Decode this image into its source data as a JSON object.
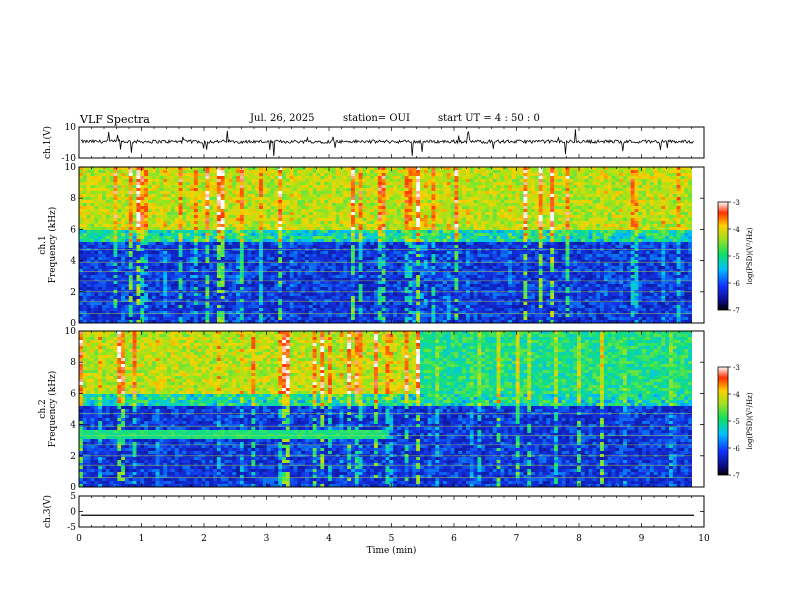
{
  "header": {
    "title": "VLF Spectra",
    "date": "Jul. 26, 2025",
    "station": "station= OUI",
    "start_time": "start UT =  4 : 50 : 0"
  },
  "colorbar": {
    "label": "log(PSD)(V²/Hz)",
    "ticks": [
      "-3",
      "-4",
      "-5",
      "-6",
      "-7"
    ]
  },
  "chart_data": [
    {
      "type": "line",
      "id": "ch1-waveform",
      "ylabel": "ch.1(V)",
      "ylim": [
        -10,
        10
      ],
      "yticks": [
        "10",
        "-10"
      ],
      "baseline": 0.6,
      "description_level": "dense noisy waveform around ~0 V with sparse negative spikes"
    },
    {
      "type": "heatmap",
      "id": "ch1-spectrogram",
      "ylabel": "ch.1\nFrequency (kHz)",
      "ylim": [
        0,
        10
      ],
      "yticks": [
        "0",
        "2",
        "4",
        "6",
        "8",
        "10"
      ],
      "xlim": [
        0,
        10
      ],
      "value_range": [
        -7,
        -3
      ]
    },
    {
      "type": "heatmap",
      "id": "ch2-spectrogram",
      "ylabel": "ch.2\nFrequency (kHz)",
      "ylim": [
        0,
        10
      ],
      "yticks": [
        "0",
        "2",
        "4",
        "6",
        "8",
        "10"
      ],
      "xlim": [
        0,
        10
      ],
      "value_range": [
        -7,
        -3
      ]
    },
    {
      "type": "line",
      "id": "ch3-waveform",
      "ylabel": "ch.3(V)",
      "ylim": [
        -5,
        5
      ],
      "yticks": [
        "5",
        "0",
        "-5"
      ],
      "baseline": -1.2,
      "xlabel": "Time (min)",
      "xlim": [
        0,
        10
      ],
      "xticks": [
        "0",
        "1",
        "2",
        "3",
        "4",
        "5",
        "6",
        "7",
        "8",
        "9",
        "10"
      ]
    }
  ]
}
